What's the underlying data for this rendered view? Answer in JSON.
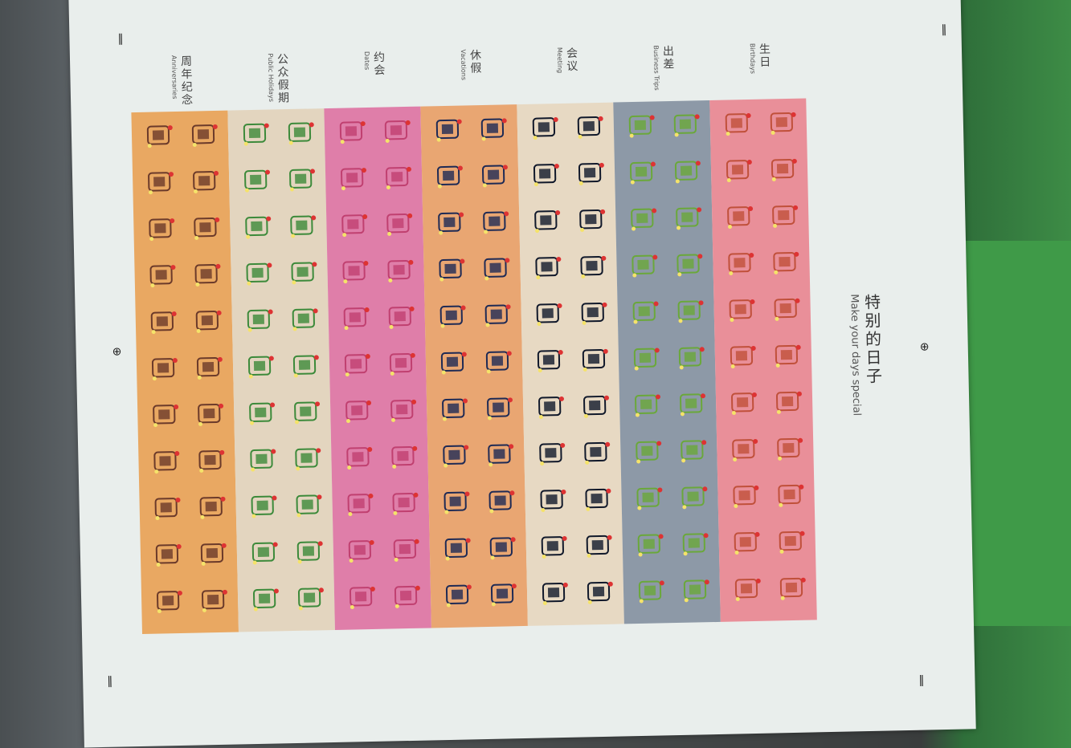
{
  "sheet": {
    "title_zh": "特别的日子",
    "title_en": "Make your days special",
    "categories": [
      {
        "zh": "周年纪念",
        "en": "Anniversaries",
        "color": "#e9a862",
        "icon": "bear-sticker"
      },
      {
        "zh": "公众假期",
        "en": "Public Holidays",
        "color": "#e3d5bf",
        "icon": "turtle-sticker"
      },
      {
        "zh": "约会",
        "en": "Dates",
        "color": "#df7ea9",
        "icon": "pig-sticker"
      },
      {
        "zh": "休假",
        "en": "Vacations",
        "color": "#e9a672",
        "icon": "suitcase-sticker"
      },
      {
        "zh": "会议",
        "en": "Meeting",
        "color": "#e7d9c3",
        "icon": "laptop-sticker"
      },
      {
        "zh": "出差",
        "en": "Business Trips",
        "color": "#8d99a7",
        "icon": "bird-sticker"
      },
      {
        "zh": "生日",
        "en": "Birthdays",
        "color": "#e98f99",
        "icon": "cake-sticker"
      }
    ],
    "rows": 11,
    "columns_per_category": 2
  }
}
